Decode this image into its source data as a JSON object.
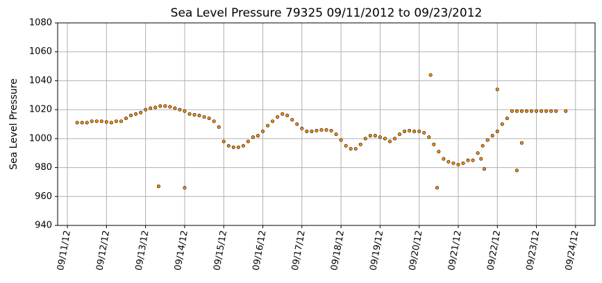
{
  "chart_data": {
    "type": "scatter",
    "title": "Sea Level Pressure 79325  09/11/2012 to 09/23/2012",
    "xlabel": "",
    "ylabel": "Sea Level Pressure",
    "xlim": [
      "2012-09-10T18:00",
      "2012-09-24T12:00"
    ],
    "ylim": [
      940,
      1080
    ],
    "y_ticks": [
      940,
      960,
      980,
      1000,
      1020,
      1040,
      1060,
      1080
    ],
    "x_ticks": [
      "09/11/12",
      "09/12/12",
      "09/13/12",
      "09/14/12",
      "09/15/12",
      "09/16/12",
      "09/17/12",
      "09/18/12",
      "09/19/12",
      "09/20/12",
      "09/21/12",
      "09/22/12",
      "09/23/12",
      "09/24/12"
    ],
    "grid": true,
    "marker_color": "#ff8c00",
    "marker_edge_color": "#000000",
    "series": [
      {
        "x": [
          "2012-09-11T06:00",
          "2012-09-11T09:00",
          "2012-09-11T12:00",
          "2012-09-11T15:00",
          "2012-09-11T18:00",
          "2012-09-11T21:00",
          "2012-09-12T00:00",
          "2012-09-12T03:00",
          "2012-09-12T06:00",
          "2012-09-12T09:00",
          "2012-09-12T12:00",
          "2012-09-12T15:00",
          "2012-09-12T18:00",
          "2012-09-12T21:00",
          "2012-09-13T00:00",
          "2012-09-13T03:00",
          "2012-09-13T06:00",
          "2012-09-13T09:00",
          "2012-09-13T12:00",
          "2012-09-13T15:00",
          "2012-09-13T18:00",
          "2012-09-13T21:00",
          "2012-09-14T00:00",
          "2012-09-14T03:00",
          "2012-09-14T06:00",
          "2012-09-14T09:00",
          "2012-09-14T12:00",
          "2012-09-14T15:00",
          "2012-09-14T18:00",
          "2012-09-14T21:00",
          "2012-09-15T00:00",
          "2012-09-15T03:00",
          "2012-09-15T06:00",
          "2012-09-15T09:00",
          "2012-09-15T12:00",
          "2012-09-15T15:00",
          "2012-09-15T18:00",
          "2012-09-15T21:00",
          "2012-09-16T00:00",
          "2012-09-16T03:00",
          "2012-09-16T06:00",
          "2012-09-16T09:00",
          "2012-09-16T12:00",
          "2012-09-16T15:00",
          "2012-09-16T18:00",
          "2012-09-16T21:00",
          "2012-09-17T00:00",
          "2012-09-17T03:00",
          "2012-09-17T06:00",
          "2012-09-17T09:00",
          "2012-09-17T12:00",
          "2012-09-17T15:00",
          "2012-09-17T18:00",
          "2012-09-17T21:00",
          "2012-09-18T00:00",
          "2012-09-18T03:00",
          "2012-09-18T06:00",
          "2012-09-18T09:00",
          "2012-09-18T12:00",
          "2012-09-18T15:00",
          "2012-09-18T18:00",
          "2012-09-18T21:00",
          "2012-09-19T00:00",
          "2012-09-19T03:00",
          "2012-09-19T06:00",
          "2012-09-19T09:00",
          "2012-09-19T12:00",
          "2012-09-19T15:00",
          "2012-09-19T18:00",
          "2012-09-19T21:00",
          "2012-09-20T00:00",
          "2012-09-20T03:00",
          "2012-09-20T06:00",
          "2012-09-20T09:00",
          "2012-09-20T12:00",
          "2012-09-20T15:00",
          "2012-09-20T18:00",
          "2012-09-20T21:00",
          "2012-09-21T00:00",
          "2012-09-21T03:00",
          "2012-09-21T06:00",
          "2012-09-21T09:00",
          "2012-09-21T12:00",
          "2012-09-21T15:00",
          "2012-09-21T18:00",
          "2012-09-21T21:00",
          "2012-09-22T00:00",
          "2012-09-22T03:00",
          "2012-09-22T06:00",
          "2012-09-22T09:00",
          "2012-09-22T12:00",
          "2012-09-22T15:00",
          "2012-09-22T18:00",
          "2012-09-22T21:00",
          "2012-09-23T00:00",
          "2012-09-23T03:00",
          "2012-09-23T06:00",
          "2012-09-23T09:00",
          "2012-09-23T12:00",
          "2012-09-23T18:00",
          "2012-09-13T08:00",
          "2012-09-14T00:00",
          "2012-09-20T07:00",
          "2012-09-20T11:00",
          "2012-09-22T00:00"
        ],
        "y": [
          1011,
          1011,
          1011,
          1012,
          1012,
          1012,
          1011.5,
          1011,
          1012,
          1012,
          1014,
          1016,
          1017,
          1018,
          1020,
          1021,
          1021.5,
          1022.5,
          1022.5,
          1022,
          1021,
          1020,
          1019,
          1017,
          1016.5,
          1016,
          1015,
          1014,
          1012,
          1008,
          998,
          995,
          994,
          994,
          995,
          998,
          1001,
          1002,
          1005,
          1009,
          1012,
          1015,
          1017,
          1016,
          1013,
          1010,
          1007,
          1005,
          1005,
          1005.5,
          1006,
          1006,
          1005.5,
          1003,
          999,
          995,
          993,
          993,
          996,
          1000,
          1002,
          1002,
          1001,
          1000,
          998,
          1000,
          1003,
          1005,
          1005.5,
          1005,
          1005,
          1004,
          1001,
          996,
          991,
          986,
          984,
          983,
          982,
          983,
          985,
          985,
          990,
          995,
          999,
          1002,
          1005,
          1010,
          1014,
          1019,
          1019,
          1019,
          1019,
          1019,
          1019,
          1019,
          1019,
          1019,
          1019,
          1019,
          967,
          966,
          1044,
          966,
          1034
        ]
      }
    ],
    "outliers_extra": {
      "x": [
        "2012-09-21T14:00",
        "2012-09-21T16:00",
        "2012-09-22T12:00",
        "2012-09-22T15:00"
      ],
      "y": [
        986,
        979,
        978,
        997
      ]
    }
  }
}
